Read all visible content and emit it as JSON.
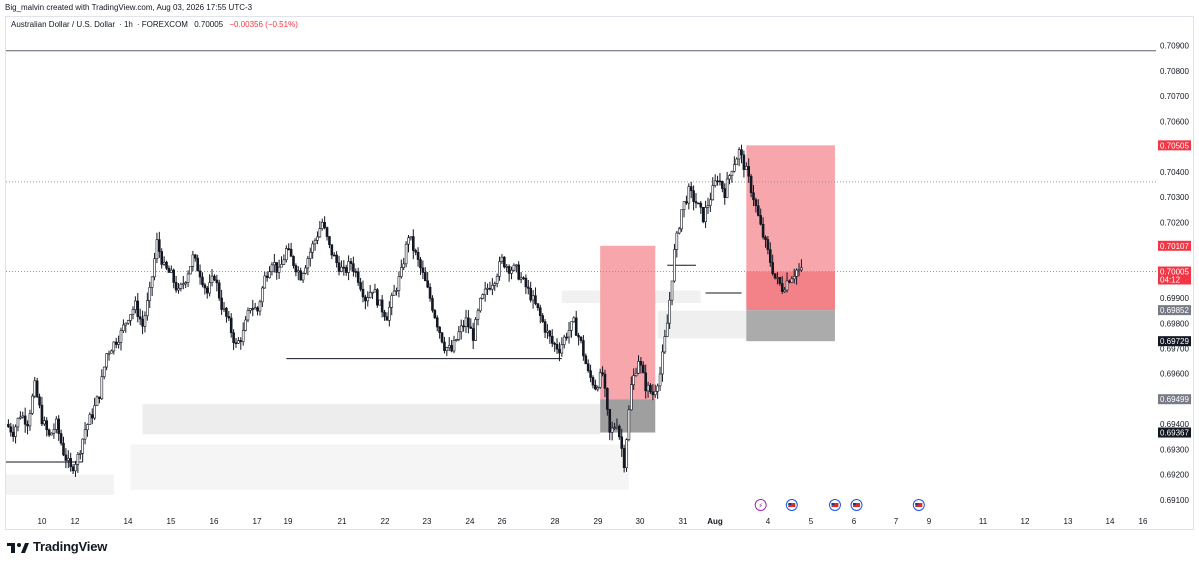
{
  "header": {
    "credit": "Big_malvin created with TradingView.com, Aug 03, 2026 17:55 UTC-3"
  },
  "symbol": {
    "name": "Australian Dollar / U.S. Dollar",
    "interval": "1h",
    "exchange": "FOREXCOM",
    "price": "0.70005",
    "change": "−0.00356 (−0.51%)",
    "change_color": "#f23645"
  },
  "branding": {
    "name": "TradingView",
    "logo_icon": "tradingview-logo-icon"
  },
  "chart_data": {
    "type": "candlestick",
    "symbol": "AUDUSD",
    "timeframe": "1h",
    "ylim": [
      0.6906,
      0.7097
    ],
    "price_ticks": [
      "0.70900",
      "0.70800",
      "0.70700",
      "0.70600",
      "0.70500",
      "0.70400",
      "0.70300",
      "0.70200",
      "0.70100",
      "0.70000",
      "0.69900",
      "0.69800",
      "0.69700",
      "0.69600",
      "0.69500",
      "0.69400",
      "0.69300",
      "0.69200",
      "0.69100"
    ],
    "time_axis": [
      "10",
      "12",
      "14",
      "15",
      "16",
      "17",
      "19",
      "21",
      "22",
      "23",
      "24",
      "26",
      "28",
      "29",
      "30",
      "31",
      "Aug",
      "4",
      "5",
      "6",
      "7",
      "9",
      "11",
      "12",
      "13",
      "14",
      "16"
    ],
    "price_labels": [
      {
        "value": "0.70505",
        "bg": "#f23645",
        "fg": "#ffffff"
      },
      {
        "value": "0.70107",
        "bg": "#f23645",
        "fg": "#ffffff"
      },
      {
        "value": "0.70005",
        "sub": "04:12",
        "bg": "#f23645",
        "fg": "#ffffff"
      },
      {
        "value": "0.69852",
        "bg": "#787b86",
        "fg": "#ffffff"
      },
      {
        "value": "0.69729",
        "bg": "#131722",
        "fg": "#ffffff"
      },
      {
        "value": "0.69499",
        "bg": "#787b86",
        "fg": "#ffffff"
      },
      {
        "value": "0.69367",
        "bg": "#131722",
        "fg": "#ffffff"
      }
    ],
    "close_path": [
      [
        0,
        0.694
      ],
      [
        3,
        0.6937
      ],
      [
        6,
        0.6944
      ],
      [
        9,
        0.6941
      ],
      [
        12,
        0.6955
      ],
      [
        15,
        0.6942
      ],
      [
        18,
        0.6935
      ],
      [
        21,
        0.694
      ],
      [
        24,
        0.6929
      ],
      [
        27,
        0.6922
      ],
      [
        30,
        0.6927
      ],
      [
        33,
        0.6938
      ],
      [
        36,
        0.6944
      ],
      [
        39,
        0.6952
      ],
      [
        42,
        0.6968
      ],
      [
        45,
        0.6972
      ],
      [
        48,
        0.6976
      ],
      [
        51,
        0.6983
      ],
      [
        54,
        0.6987
      ],
      [
        57,
        0.6979
      ],
      [
        60,
        0.6992
      ],
      [
        63,
        0.7012
      ],
      [
        66,
        0.7002
      ],
      [
        69,
        0.6999
      ],
      [
        72,
        0.6992
      ],
      [
        75,
        0.6998
      ],
      [
        78,
        0.7006
      ],
      [
        81,
        0.7
      ],
      [
        84,
        0.6992
      ],
      [
        87,
        0.6999
      ],
      [
        90,
        0.6987
      ],
      [
        93,
        0.698
      ],
      [
        96,
        0.6971
      ],
      [
        99,
        0.6976
      ],
      [
        102,
        0.6987
      ],
      [
        105,
        0.6985
      ],
      [
        108,
        0.6998
      ],
      [
        111,
        0.7005
      ],
      [
        114,
        0.7
      ],
      [
        117,
        0.7009
      ],
      [
        120,
        0.7004
      ],
      [
        123,
        0.6999
      ],
      [
        126,
        0.7006
      ],
      [
        129,
        0.7013
      ],
      [
        132,
        0.702
      ],
      [
        135,
        0.701
      ],
      [
        138,
        0.7004
      ],
      [
        141,
        0.7
      ],
      [
        144,
        0.7004
      ],
      [
        147,
        0.6998
      ],
      [
        150,
        0.699
      ],
      [
        153,
        0.6994
      ],
      [
        156,
        0.6987
      ],
      [
        159,
        0.6983
      ],
      [
        162,
        0.6992
      ],
      [
        165,
        0.7
      ],
      [
        168,
        0.7015
      ],
      [
        171,
        0.7007
      ],
      [
        174,
        0.6999
      ],
      [
        177,
        0.699
      ],
      [
        180,
        0.698
      ],
      [
        183,
        0.6971
      ],
      [
        186,
        0.6969
      ],
      [
        189,
        0.6976
      ],
      [
        192,
        0.6981
      ],
      [
        195,
        0.6975
      ],
      [
        198,
        0.6988
      ],
      [
        201,
        0.6994
      ],
      [
        204,
        0.6998
      ],
      [
        207,
        0.7005
      ],
      [
        210,
        0.7002
      ],
      [
        213,
        0.7001
      ],
      [
        216,
        0.6996
      ],
      [
        219,
        0.6991
      ],
      [
        222,
        0.6985
      ],
      [
        225,
        0.6978
      ],
      [
        228,
        0.6972
      ],
      [
        231,
        0.697
      ],
      [
        234,
        0.6976
      ],
      [
        237,
        0.698
      ],
      [
        240,
        0.6972
      ],
      [
        243,
        0.696
      ],
      [
        246,
        0.6955
      ],
      [
        249,
        0.696
      ],
      [
        252,
        0.6936
      ],
      [
        255,
        0.6941
      ],
      [
        258,
        0.6925
      ],
      [
        261,
        0.6955
      ],
      [
        264,
        0.6966
      ],
      [
        267,
        0.6955
      ],
      [
        270,
        0.6952
      ],
      [
        273,
        0.696
      ],
      [
        276,
        0.698
      ],
      [
        279,
        0.7008
      ],
      [
        282,
        0.7025
      ],
      [
        285,
        0.7032
      ],
      [
        288,
        0.7028
      ],
      [
        291,
        0.7022
      ],
      [
        294,
        0.703
      ],
      [
        297,
        0.7038
      ],
      [
        300,
        0.7032
      ],
      [
        303,
        0.7042
      ],
      [
        306,
        0.7048
      ],
      [
        309,
        0.704
      ],
      [
        312,
        0.703
      ],
      [
        315,
        0.7018
      ],
      [
        318,
        0.7008
      ],
      [
        321,
        0.6998
      ],
      [
        324,
        0.6994
      ],
      [
        327,
        0.6998
      ],
      [
        330,
        0.7001
      ],
      [
        332,
        0.70005
      ]
    ],
    "zones": [
      {
        "name": "upper-red-zone",
        "t0": 248,
        "t1": 271,
        "y0": 0.70107,
        "y1": 0.69499,
        "fill": "#f7a1a8"
      },
      {
        "name": "lower-gray-zone",
        "t0": 248,
        "t1": 271,
        "y0": 0.69499,
        "y1": 0.69367,
        "fill": "#9a9a9a"
      },
      {
        "name": "target-red-zone",
        "t0": 309,
        "t1": 346,
        "y0": 0.70505,
        "y1": 0.70005,
        "fill": "#f7a1a8"
      },
      {
        "name": "entry-red-zone",
        "t0": 309,
        "t1": 346,
        "y0": 0.70005,
        "y1": 0.69852,
        "fill": "#f27a82"
      },
      {
        "name": "stop-gray-zone",
        "t0": 309,
        "t1": 346,
        "y0": 0.69852,
        "y1": 0.69729,
        "fill": "#a7a7a7"
      },
      {
        "name": "demand-band-1",
        "t0": 57,
        "t1": 248,
        "y0": 0.6948,
        "y1": 0.6936,
        "fill": "#ececec"
      },
      {
        "name": "demand-band-2",
        "t0": 0,
        "t1": 45,
        "y0": 0.692,
        "y1": 0.6912,
        "fill": "#f2f2f2"
      },
      {
        "name": "demand-band-3",
        "t0": 52,
        "t1": 260,
        "y0": 0.6932,
        "y1": 0.6914,
        "fill": "#f4f4f4"
      },
      {
        "name": "supply-band-1",
        "t0": 232,
        "t1": 290,
        "y0": 0.6993,
        "y1": 0.6988,
        "fill": "#f0f0f0"
      },
      {
        "name": "supply-band-2",
        "t0": 272,
        "t1": 309,
        "y0": 0.6985,
        "y1": 0.6974,
        "fill": "#eeeeee"
      }
    ],
    "levels": [
      {
        "name": "low-line-1",
        "t0": 0,
        "t1": 32,
        "y": 0.6925,
        "color": "#131722"
      },
      {
        "name": "low-line-2",
        "t0": 117,
        "t1": 232,
        "y": 0.6966,
        "color": "#131722"
      },
      {
        "name": "low-line-3",
        "t0": 276,
        "t1": 288,
        "y": 0.7003,
        "color": "#131722"
      },
      {
        "name": "low-line-4",
        "t0": 292,
        "t1": 307,
        "y": 0.6992,
        "color": "#131722"
      },
      {
        "name": "top-line",
        "t0": 0,
        "t1": 480,
        "y": 0.7088,
        "color": "#5d606b"
      }
    ],
    "dotted_levels": [
      {
        "name": "dotted-level-upper",
        "y": 0.7036
      },
      {
        "name": "dotted-level-current",
        "y": 0.70005
      }
    ],
    "event_icons": [
      {
        "name": "lightning-event-icon",
        "t": 315,
        "color": "#9c27b0",
        "glyph": "⚡"
      },
      {
        "name": "us-flag-event-icon-1",
        "t": 328,
        "color": "#1e53e5",
        "glyph": ""
      },
      {
        "name": "us-flag-event-icon-2",
        "t": 346,
        "color": "#1e53e5",
        "glyph": ""
      },
      {
        "name": "au-flag-event-icon",
        "t": 355,
        "color": "#1e53e5",
        "glyph": ""
      },
      {
        "name": "us-flag-event-icon-3",
        "t": 381,
        "color": "#1e53e5",
        "glyph": ""
      }
    ],
    "grid": false
  }
}
